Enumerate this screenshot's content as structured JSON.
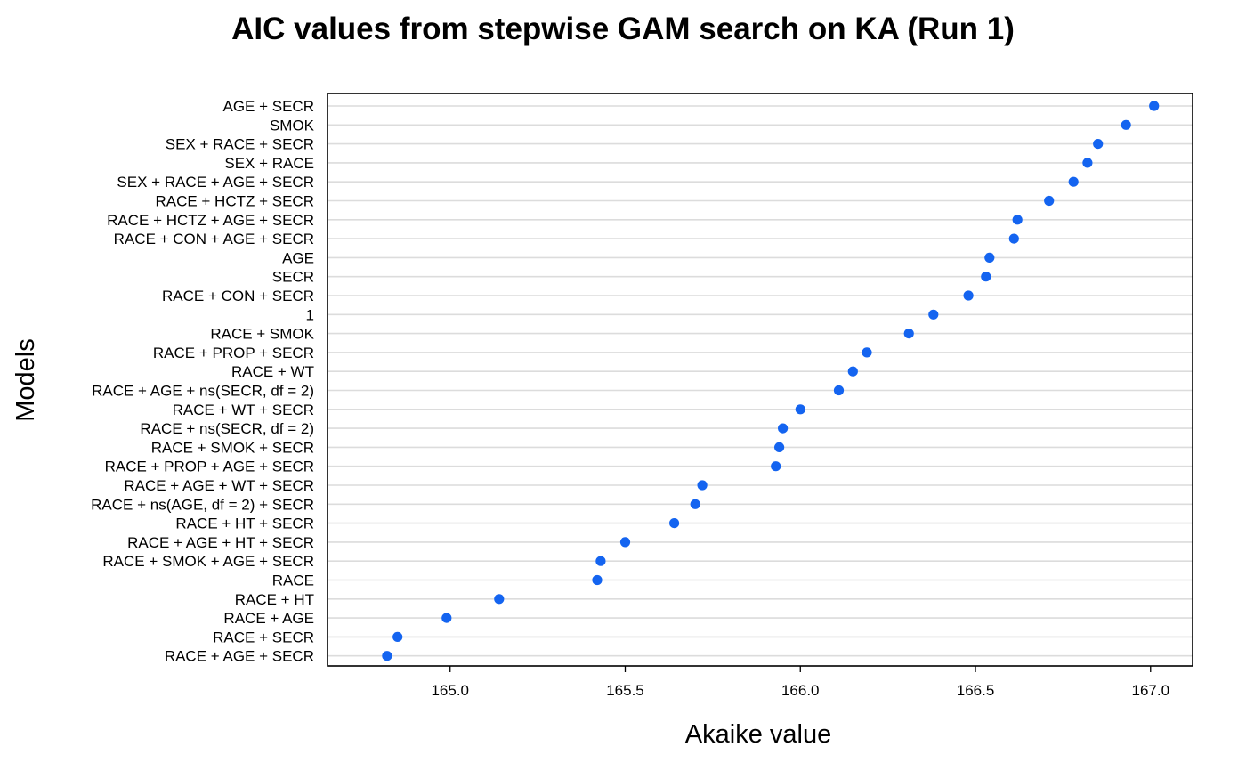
{
  "chart_data": {
    "type": "scatter",
    "title": "AIC values from stepwise GAM search on KA (Run 1)",
    "xlabel": "Akaike value",
    "ylabel": "Models",
    "xlim": [
      164.65,
      167.12
    ],
    "xticks": [
      165.0,
      165.5,
      166.0,
      166.5,
      167.0
    ],
    "xtick_labels": [
      "165.0",
      "165.5",
      "166.0",
      "166.5",
      "167.0"
    ],
    "grid": "horizontal",
    "legend": "none",
    "marker_color": "#1464f0",
    "points": [
      {
        "model": "AGE + SECR",
        "aic": 167.01
      },
      {
        "model": "SMOK",
        "aic": 166.93
      },
      {
        "model": "SEX + RACE + SECR",
        "aic": 166.85
      },
      {
        "model": "SEX + RACE",
        "aic": 166.82
      },
      {
        "model": "SEX + RACE + AGE + SECR",
        "aic": 166.78
      },
      {
        "model": "RACE + HCTZ + SECR",
        "aic": 166.71
      },
      {
        "model": "RACE + HCTZ + AGE + SECR",
        "aic": 166.62
      },
      {
        "model": "RACE + CON + AGE + SECR",
        "aic": 166.61
      },
      {
        "model": "AGE",
        "aic": 166.54
      },
      {
        "model": "SECR",
        "aic": 166.53
      },
      {
        "model": "RACE + CON + SECR",
        "aic": 166.48
      },
      {
        "model": "1",
        "aic": 166.38
      },
      {
        "model": "RACE + SMOK",
        "aic": 166.31
      },
      {
        "model": "RACE + PROP + SECR",
        "aic": 166.19
      },
      {
        "model": "RACE + WT",
        "aic": 166.15
      },
      {
        "model": "RACE + AGE + ns(SECR, df = 2)",
        "aic": 166.11
      },
      {
        "model": "RACE + WT + SECR",
        "aic": 166.0
      },
      {
        "model": "RACE + ns(SECR, df = 2)",
        "aic": 165.95
      },
      {
        "model": "RACE + SMOK + SECR",
        "aic": 165.94
      },
      {
        "model": "RACE + PROP + AGE + SECR",
        "aic": 165.93
      },
      {
        "model": "RACE + AGE + WT + SECR",
        "aic": 165.72
      },
      {
        "model": "RACE + ns(AGE, df = 2) + SECR",
        "aic": 165.7
      },
      {
        "model": "RACE + HT + SECR",
        "aic": 165.64
      },
      {
        "model": "RACE + AGE + HT + SECR",
        "aic": 165.5
      },
      {
        "model": "RACE + SMOK + AGE + SECR",
        "aic": 165.43
      },
      {
        "model": "RACE",
        "aic": 165.42
      },
      {
        "model": "RACE + HT",
        "aic": 165.14
      },
      {
        "model": "RACE + AGE",
        "aic": 164.99
      },
      {
        "model": "RACE + SECR",
        "aic": 164.85
      },
      {
        "model": "RACE + AGE + SECR",
        "aic": 164.82
      }
    ]
  }
}
